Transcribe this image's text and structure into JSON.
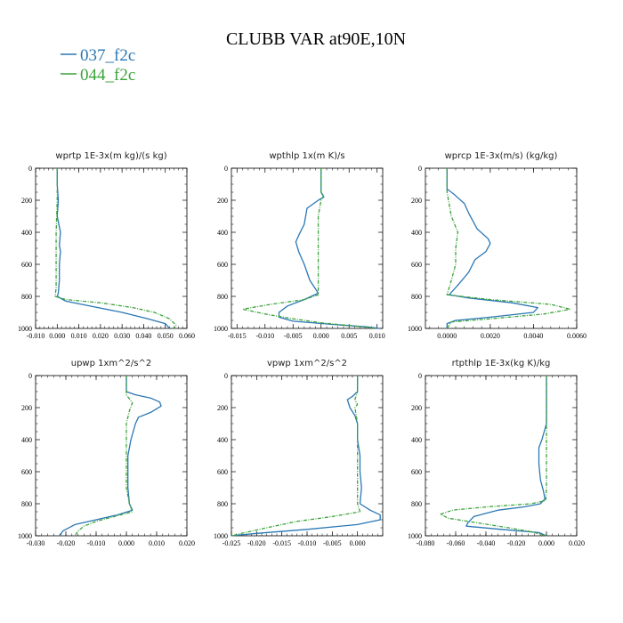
{
  "figure": {
    "title": "CLUBB VAR at90E,10N",
    "legend": [
      {
        "name": "037_f2c",
        "color": "#2a77b4"
      },
      {
        "name": "044_f2c",
        "color": "#3aa33a"
      }
    ]
  },
  "chart_data": [
    {
      "type": "line",
      "title": "wprtp  1E-3x(m kg)/(s kg)",
      "xlim": [
        -0.01,
        0.06
      ],
      "ylim": [
        1000,
        0
      ],
      "xticks": [
        "-0.010",
        "0.000",
        "0.010",
        "0.020",
        "0.030",
        "0.040",
        "0.050",
        "0.060"
      ],
      "xtick_values": [
        -0.01,
        0.0,
        0.01,
        0.02,
        0.03,
        0.04,
        0.05,
        0.06
      ],
      "yticks": [
        0,
        200,
        400,
        600,
        800,
        1000
      ],
      "series": [
        {
          "name": "037_f2c",
          "points": [
            [
              0.0,
              0
            ],
            [
              0.0,
              100
            ],
            [
              0.0005,
              200
            ],
            [
              0.0,
              300
            ],
            [
              0.0015,
              400
            ],
            [
              0.001,
              480
            ],
            [
              0.0015,
              520
            ],
            [
              0.001,
              600
            ],
            [
              0.001,
              700
            ],
            [
              0.0005,
              780
            ],
            [
              0.0,
              800
            ],
            [
              0.004,
              830
            ],
            [
              0.015,
              860
            ],
            [
              0.03,
              900
            ],
            [
              0.042,
              940
            ],
            [
              0.05,
              970
            ],
            [
              0.052,
              1000
            ]
          ]
        },
        {
          "name": "044_f2c",
          "points": [
            [
              0.0,
              0
            ],
            [
              0.0,
              200
            ],
            [
              -0.0005,
              400
            ],
            [
              -0.0005,
              600
            ],
            [
              -0.0005,
              750
            ],
            [
              -0.001,
              800
            ],
            [
              0.004,
              820
            ],
            [
              0.02,
              840
            ],
            [
              0.035,
              870
            ],
            [
              0.045,
              900
            ],
            [
              0.052,
              940
            ],
            [
              0.055,
              980
            ],
            [
              0.054,
              1000
            ]
          ]
        }
      ]
    },
    {
      "type": "line",
      "title": "wpthlp  1x(m K)/s",
      "xlim": [
        -0.016,
        0.011
      ],
      "ylim": [
        1000,
        0
      ],
      "xticks": [
        "-0.015",
        "-0.010",
        "-0.005",
        "0.000",
        "0.005",
        "0.010"
      ],
      "xtick_values": [
        -0.015,
        -0.01,
        -0.005,
        0.0,
        0.005,
        0.01
      ],
      "yticks": [
        0,
        200,
        400,
        600,
        800,
        1000
      ],
      "series": [
        {
          "name": "037_f2c",
          "points": [
            [
              0.0,
              0
            ],
            [
              0.0,
              150
            ],
            [
              0.0005,
              180
            ],
            [
              -0.0005,
              200
            ],
            [
              -0.0025,
              250
            ],
            [
              -0.003,
              350
            ],
            [
              -0.004,
              420
            ],
            [
              -0.0045,
              460
            ],
            [
              -0.004,
              520
            ],
            [
              -0.003,
              600
            ],
            [
              -0.002,
              700
            ],
            [
              -0.0005,
              780
            ],
            [
              -0.003,
              820
            ],
            [
              -0.006,
              860
            ],
            [
              -0.0075,
              900
            ],
            [
              -0.0075,
              930
            ],
            [
              -0.005,
              955
            ],
            [
              0.002,
              975
            ],
            [
              0.008,
              990
            ],
            [
              0.0105,
              1000
            ]
          ]
        },
        {
          "name": "044_f2c",
          "points": [
            [
              0.0,
              0
            ],
            [
              0.0,
              150
            ],
            [
              0.0005,
              170
            ],
            [
              0.0,
              200
            ],
            [
              -0.0005,
              300
            ],
            [
              -0.0005,
              500
            ],
            [
              -0.0005,
              700
            ],
            [
              -0.0005,
              790
            ],
            [
              -0.003,
              820
            ],
            [
              -0.009,
              850
            ],
            [
              -0.014,
              880
            ],
            [
              -0.01,
              910
            ],
            [
              -0.005,
              940
            ],
            [
              0.0,
              965
            ],
            [
              0.006,
              985
            ],
            [
              0.01,
              1000
            ]
          ]
        }
      ]
    },
    {
      "type": "line",
      "title": "wprcp  1E-3x(m/s) (kg/kg)",
      "xlim": [
        -0.001,
        0.006
      ],
      "ylim": [
        1000,
        0
      ],
      "xticks": [
        "0.0000",
        "0.0020",
        "0.0040",
        "0.0060"
      ],
      "xtick_values": [
        0.0,
        0.002,
        0.004,
        0.006
      ],
      "yticks": [
        0,
        200,
        400,
        600,
        800,
        1000
      ],
      "series": [
        {
          "name": "037_f2c",
          "points": [
            [
              0.0,
              0
            ],
            [
              0.0,
              130
            ],
            [
              0.0003,
              160
            ],
            [
              0.0008,
              220
            ],
            [
              0.001,
              280
            ],
            [
              0.0014,
              380
            ],
            [
              0.0019,
              440
            ],
            [
              0.002,
              470
            ],
            [
              0.0018,
              520
            ],
            [
              0.0013,
              570
            ],
            [
              0.001,
              650
            ],
            [
              0.0005,
              730
            ],
            [
              0.0001,
              790
            ],
            [
              0.001,
              810
            ],
            [
              0.003,
              840
            ],
            [
              0.0042,
              870
            ],
            [
              0.004,
              900
            ],
            [
              0.002,
              930
            ],
            [
              0.0004,
              950
            ],
            [
              0.0,
              970
            ],
            [
              0.0,
              1000
            ]
          ]
        },
        {
          "name": "044_f2c",
          "points": [
            [
              0.0,
              0
            ],
            [
              0.0,
              150
            ],
            [
              0.0002,
              300
            ],
            [
              0.0005,
              400
            ],
            [
              0.0004,
              500
            ],
            [
              0.0004,
              600
            ],
            [
              0.0002,
              700
            ],
            [
              0.0,
              790
            ],
            [
              0.002,
              820
            ],
            [
              0.0048,
              850
            ],
            [
              0.0057,
              880
            ],
            [
              0.0045,
              910
            ],
            [
              0.002,
              940
            ],
            [
              0.0002,
              960
            ],
            [
              0.0,
              1000
            ]
          ]
        }
      ]
    },
    {
      "type": "line",
      "title": "upwp  1xm^2/s^2",
      "xlim": [
        -0.03,
        0.02
      ],
      "ylim": [
        1000,
        0
      ],
      "xticks": [
        "-0.030",
        "-0.020",
        "-0.010",
        "0.000",
        "0.010",
        "0.020"
      ],
      "xtick_values": [
        -0.03,
        -0.02,
        -0.01,
        0.0,
        0.01,
        0.02
      ],
      "yticks": [
        0,
        200,
        400,
        600,
        800,
        1000
      ],
      "series": [
        {
          "name": "037_f2c",
          "points": [
            [
              0.0,
              0
            ],
            [
              0.0,
              100
            ],
            [
              0.003,
              120
            ],
            [
              0.008,
              140
            ],
            [
              0.011,
              165
            ],
            [
              0.0115,
              190
            ],
            [
              0.008,
              230
            ],
            [
              0.004,
              260
            ],
            [
              0.003,
              300
            ],
            [
              0.0015,
              400
            ],
            [
              0.0005,
              500
            ],
            [
              0.0005,
              700
            ],
            [
              0.001,
              800
            ],
            [
              0.002,
              840
            ],
            [
              -0.003,
              870
            ],
            [
              -0.01,
              900
            ],
            [
              -0.017,
              930
            ],
            [
              -0.021,
              970
            ],
            [
              -0.022,
              1000
            ]
          ]
        },
        {
          "name": "044_f2c",
          "points": [
            [
              0.0,
              0
            ],
            [
              0.0,
              120
            ],
            [
              0.002,
              170
            ],
            [
              0.001,
              220
            ],
            [
              0.0,
              300
            ],
            [
              0.0,
              500
            ],
            [
              0.0,
              700
            ],
            [
              0.001,
              800
            ],
            [
              0.002,
              850
            ],
            [
              -0.004,
              880
            ],
            [
              -0.01,
              910
            ],
            [
              -0.014,
              940
            ],
            [
              -0.016,
              970
            ],
            [
              -0.017,
              1000
            ]
          ]
        }
      ]
    },
    {
      "type": "line",
      "title": "vpwp  1xm^2/s^2",
      "xlim": [
        -0.025,
        0.005
      ],
      "ylim": [
        1000,
        0
      ],
      "xticks": [
        "-0.025",
        "-0.020",
        "-0.015",
        "-0.010",
        "-0.005",
        "0.000"
      ],
      "xtick_values": [
        -0.025,
        -0.02,
        -0.015,
        -0.01,
        -0.005,
        0.0
      ],
      "yticks": [
        0,
        200,
        400,
        600,
        800,
        1000
      ],
      "series": [
        {
          "name": "037_f2c",
          "points": [
            [
              0.0,
              0
            ],
            [
              0.0,
              100
            ],
            [
              -0.001,
              130
            ],
            [
              -0.002,
              150
            ],
            [
              -0.0015,
              200
            ],
            [
              -0.0005,
              250
            ],
            [
              0.0,
              300
            ],
            [
              0.0,
              400
            ],
            [
              0.0005,
              500
            ],
            [
              0.0005,
              600
            ],
            [
              0.0008,
              700
            ],
            [
              0.0005,
              800
            ],
            [
              0.0025,
              840
            ],
            [
              0.0045,
              870
            ],
            [
              0.0045,
              900
            ],
            [
              0.0,
              930
            ],
            [
              -0.01,
              960
            ],
            [
              -0.02,
              985
            ],
            [
              -0.025,
              1000
            ]
          ]
        },
        {
          "name": "044_f2c",
          "points": [
            [
              0.0,
              0
            ],
            [
              0.0,
              100
            ],
            [
              -0.0005,
              150
            ],
            [
              0.0,
              180
            ],
            [
              -0.0005,
              200
            ],
            [
              0.0,
              300
            ],
            [
              0.0,
              500
            ],
            [
              0.0,
              700
            ],
            [
              0.0,
              800
            ],
            [
              0.0005,
              850
            ],
            [
              -0.005,
              880
            ],
            [
              -0.012,
              910
            ],
            [
              -0.018,
              950
            ],
            [
              -0.023,
              985
            ],
            [
              -0.025,
              1000
            ]
          ]
        }
      ]
    },
    {
      "type": "line",
      "title": "rtpthlp  1E-3x(kg K)/kg",
      "xlim": [
        -0.08,
        0.02
      ],
      "ylim": [
        1000,
        0
      ],
      "xticks": [
        "-0.080",
        "-0.060",
        "-0.040",
        "-0.020",
        "0.000",
        "0.020"
      ],
      "xtick_values": [
        -0.08,
        -0.06,
        -0.04,
        -0.02,
        0.0,
        0.02
      ],
      "yticks": [
        0,
        200,
        400,
        600,
        800,
        1000
      ],
      "series": [
        {
          "name": "037_f2c",
          "points": [
            [
              0.0,
              0
            ],
            [
              0.0,
              300
            ],
            [
              -0.003,
              400
            ],
            [
              -0.005,
              450
            ],
            [
              -0.005,
              550
            ],
            [
              -0.004,
              650
            ],
            [
              -0.002,
              720
            ],
            [
              -0.001,
              770
            ],
            [
              -0.004,
              800
            ],
            [
              -0.015,
              820
            ],
            [
              -0.032,
              840
            ],
            [
              -0.04,
              860
            ],
            [
              -0.048,
              880
            ],
            [
              -0.052,
              920
            ],
            [
              -0.053,
              940
            ],
            [
              -0.03,
              960
            ],
            [
              -0.005,
              980
            ],
            [
              0.0,
              1000
            ]
          ]
        },
        {
          "name": "044_f2c",
          "points": [
            [
              0.0,
              0
            ],
            [
              0.0,
              500
            ],
            [
              0.0,
              700
            ],
            [
              -0.0005,
              780
            ],
            [
              -0.01,
              800
            ],
            [
              -0.04,
              820
            ],
            [
              -0.062,
              840
            ],
            [
              -0.07,
              865
            ],
            [
              -0.065,
              890
            ],
            [
              -0.045,
              920
            ],
            [
              -0.025,
              950
            ],
            [
              -0.01,
              975
            ],
            [
              0.0,
              1000
            ]
          ]
        }
      ]
    }
  ]
}
